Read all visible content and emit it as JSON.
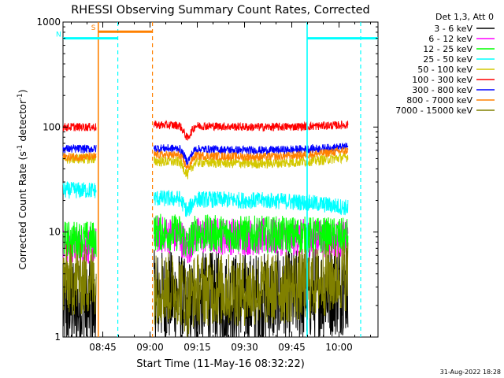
{
  "chart_data": {
    "type": "line",
    "title": "RHESSI Observing Summary Count Rates, Corrected",
    "xlabel": "Start Time (11-May-16 08:32:22)",
    "ylabel_parts": {
      "main": "Corrected Count Rate (s",
      "sup": "-1",
      "tail": " detector",
      "sup2": "-1",
      "end": ")"
    },
    "y_scale": "log",
    "ylim": [
      1,
      1000
    ],
    "y_ticks": [
      {
        "value": 1,
        "label": "1"
      },
      {
        "value": 10,
        "label": "10"
      },
      {
        "value": 100,
        "label": "100"
      },
      {
        "value": 1000,
        "label": "1000"
      }
    ],
    "xlim_minutes": [
      0,
      100
    ],
    "x_ticks": [
      {
        "minute": 12.63,
        "label": "08:45"
      },
      {
        "minute": 27.63,
        "label": "09:00"
      },
      {
        "minute": 42.63,
        "label": "09:15"
      },
      {
        "minute": 57.63,
        "label": "09:30"
      },
      {
        "minute": 72.63,
        "label": "09:45"
      },
      {
        "minute": 87.63,
        "label": "10:00"
      }
    ],
    "legend_header": "Det 1,3, Att 0",
    "series": [
      {
        "name": "3 - 6 keV",
        "color": "#000000",
        "level_start": 1.9,
        "level_mid": 2.3,
        "level_end": 3.0,
        "noise": 0.45
      },
      {
        "name": "6 - 12 keV",
        "color": "#ff00ff",
        "level_start": 7.5,
        "level_mid": 9.0,
        "level_end": 8.5,
        "noise": 0.18
      },
      {
        "name": "12 - 25 keV",
        "color": "#00ff00",
        "level_start": 8.5,
        "level_mid": 9.5,
        "level_end": 9.0,
        "noise": 0.18
      },
      {
        "name": "25 - 50 keV",
        "color": "#00ffff",
        "level_start": 25,
        "level_mid": 20,
        "level_end": 17,
        "noise": 0.08
      },
      {
        "name": "50 - 100 keV",
        "color": "#d4c800",
        "level_start": 50,
        "level_mid": 45,
        "level_end": 52,
        "noise": 0.05
      },
      {
        "name": "100 - 300 keV",
        "color": "#ff0000",
        "level_start": 100,
        "level_mid": 100,
        "level_end": 105,
        "noise": 0.04
      },
      {
        "name": "300 - 800 keV",
        "color": "#0000ff",
        "level_start": 62,
        "level_mid": 60,
        "level_end": 65,
        "noise": 0.04
      },
      {
        "name": "800 - 7000 keV",
        "color": "#ff8000",
        "level_start": 52,
        "level_mid": 52,
        "level_end": 60,
        "noise": 0.04
      },
      {
        "name": "7000 - 15000 keV",
        "color": "#808000",
        "level_start": 3.5,
        "level_mid": 2.8,
        "level_end": 4.0,
        "noise": 0.35
      }
    ],
    "segments_minutes": [
      [
        0,
        10.6
      ],
      [
        28.9,
        90.5
      ]
    ],
    "dip_minute": 39.5,
    "flags": [
      {
        "label": "S",
        "color": "#ff8000",
        "minute_start": 11.2,
        "minute_end": 28.4,
        "value": 810
      },
      {
        "label": "N",
        "color": "#00ffff",
        "minute_start": 0,
        "minute_end": 17.4,
        "value": 700
      },
      {
        "label": "",
        "color": "#00ffff",
        "minute_start": 77.5,
        "minute_end": 100,
        "value": 700
      }
    ],
    "vlines": [
      {
        "minute": 11.2,
        "color": "#ff8000",
        "style": "solid"
      },
      {
        "minute": 17.4,
        "color": "#00ffff",
        "style": "dashed"
      },
      {
        "minute": 28.4,
        "color": "#ff8000",
        "style": "dashed"
      },
      {
        "minute": 77.5,
        "color": "#00ffff",
        "style": "solid"
      },
      {
        "minute": 94.5,
        "color": "#00ffff",
        "style": "dashed"
      }
    ],
    "footer_date": "31-Aug-2022 18:28"
  }
}
